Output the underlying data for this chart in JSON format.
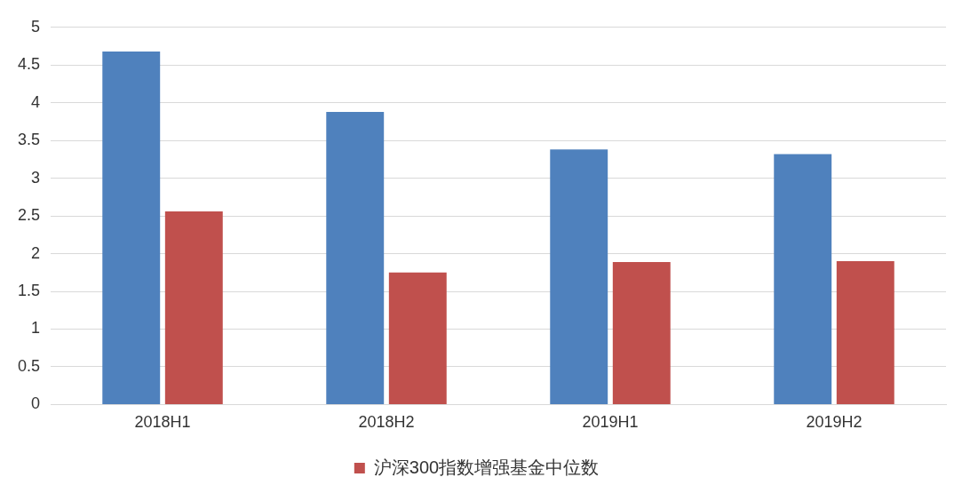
{
  "chart_data": {
    "type": "bar",
    "categories": [
      "2018H1",
      "2018H2",
      "2019H1",
      "2019H2"
    ],
    "series": [
      {
        "color": "#4f81bd",
        "values": [
          4.68,
          3.88,
          3.38,
          3.32
        ]
      },
      {
        "name": "沪深300指数增强基金中位数",
        "color": "#c0504d",
        "values": [
          2.56,
          1.75,
          1.89,
          1.9
        ]
      }
    ],
    "ylim": [
      0,
      5
    ],
    "yticks": [
      0,
      0.5,
      1,
      1.5,
      2,
      2.5,
      3,
      3.5,
      4,
      4.5,
      5
    ],
    "grid": "y",
    "legend": "bottom"
  }
}
